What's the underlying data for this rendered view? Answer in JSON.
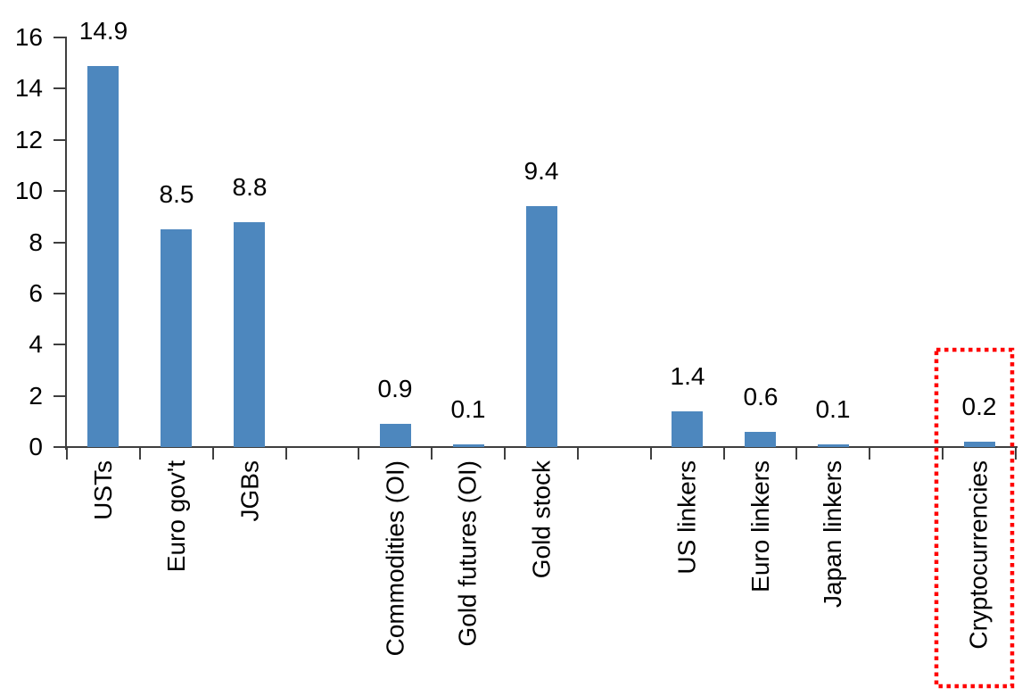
{
  "chart_data": {
    "type": "bar",
    "title": "",
    "xlabel": "",
    "ylabel": "",
    "ylim": [
      0,
      16
    ],
    "y_ticks": [
      0,
      2,
      4,
      6,
      8,
      10,
      12,
      14,
      16
    ],
    "grid": false,
    "legend": null,
    "data_labels_shown": true,
    "categories": [
      "USTs",
      "Euro gov't",
      "JGBs",
      "Commodities (OI)",
      "Gold futures (OI)",
      "Gold stock",
      "US linkers",
      "Euro linkers",
      "Japan linkers",
      "Cryptocurrencies"
    ],
    "values": [
      14.9,
      8.5,
      8.8,
      0.9,
      0.1,
      9.4,
      1.4,
      0.6,
      0.1,
      0.2
    ],
    "data_labels": [
      "14.9",
      "8.5",
      "8.8",
      "0.9",
      "0.1",
      "9.4",
      "1.4",
      "0.6",
      "0.1",
      "0.2"
    ],
    "slot_of_category": [
      0,
      1,
      2,
      4,
      5,
      6,
      8,
      9,
      10,
      12
    ],
    "total_slots": 13,
    "colors": {
      "bar": "#4d87be",
      "axis": "#3f3f3f",
      "text": "#000000",
      "highlight": "#ff0000"
    },
    "highlight": {
      "category": "Cryptocurrencies",
      "shape": "red-dotted-rectangle"
    }
  }
}
